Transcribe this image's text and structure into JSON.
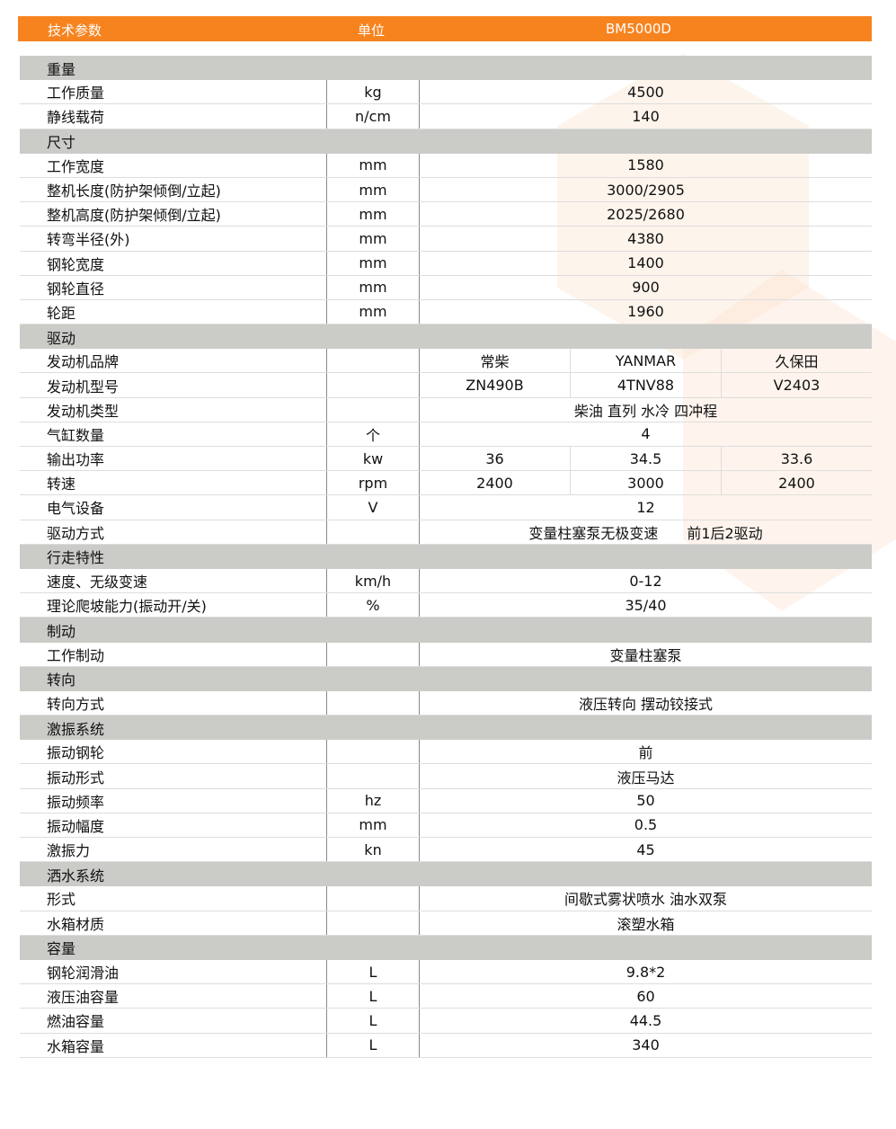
{
  "header": {
    "param": "技术参数",
    "unit": "单位",
    "model": "BM5000D"
  },
  "colors": {
    "header_bg": "#f7831f",
    "section_bg": "#cbcbc8"
  },
  "sections": [
    {
      "title": "重量",
      "rows": [
        {
          "label": "工作质量",
          "unit": "kg",
          "value": "4500"
        },
        {
          "label": "静线载荷",
          "unit": "n/cm",
          "value": "140"
        }
      ]
    },
    {
      "title": "尺寸",
      "rows": [
        {
          "label": "工作宽度",
          "unit": "mm",
          "value": "1580"
        },
        {
          "label": "整机长度(防护架倾倒/立起)",
          "unit": "mm",
          "value": "3000/2905"
        },
        {
          "label": "整机高度(防护架倾倒/立起)",
          "unit": "mm",
          "value": "2025/2680"
        },
        {
          "label": "转弯半径(外)",
          "unit": "mm",
          "value": "4380"
        },
        {
          "label": "钢轮宽度",
          "unit": "mm",
          "value": "1400"
        },
        {
          "label": "钢轮直径",
          "unit": "mm",
          "value": "900"
        },
        {
          "label": "轮距",
          "unit": "mm",
          "value": "1960"
        }
      ]
    },
    {
      "title": "驱动",
      "rows": [
        {
          "label": "发动机品牌",
          "unit": "",
          "values": [
            "常柴",
            "YANMAR",
            "久保田"
          ]
        },
        {
          "label": "发动机型号",
          "unit": "",
          "values": [
            "ZN490B",
            "4TNV88",
            "V2403"
          ]
        },
        {
          "label": "发动机类型",
          "unit": "",
          "value": "柴油 直列 水冷 四冲程"
        },
        {
          "label": "气缸数量",
          "unit": "个",
          "value": "4"
        },
        {
          "label": "输出功率",
          "unit": "kw",
          "values": [
            "36",
            "34.5",
            "33.6"
          ]
        },
        {
          "label": "转速",
          "unit": "rpm",
          "values": [
            "2400",
            "3000",
            "2400"
          ]
        },
        {
          "label": "电气设备",
          "unit": "V",
          "value": "12"
        },
        {
          "label": "驱动方式",
          "unit": "",
          "value": "变量柱塞泵无极变速　　前1后2驱动"
        }
      ]
    },
    {
      "title": "行走特性",
      "rows": [
        {
          "label": "速度、无级变速",
          "unit": "km/h",
          "value": "0-12"
        },
        {
          "label": "理论爬坡能力(振动开/关)",
          "unit": "%",
          "value": "35/40"
        }
      ]
    },
    {
      "title": "制动",
      "rows": [
        {
          "label": "工作制动",
          "unit": "",
          "value": "变量柱塞泵"
        }
      ]
    },
    {
      "title": "转向",
      "rows": [
        {
          "label": "转向方式",
          "unit": "",
          "value": "液压转向 摆动铰接式"
        }
      ]
    },
    {
      "title": "激振系统",
      "rows": [
        {
          "label": "振动钢轮",
          "unit": "",
          "value": "前"
        },
        {
          "label": "振动形式",
          "unit": "",
          "value": "液压马达"
        },
        {
          "label": "振动频率",
          "unit": "hz",
          "value": "50"
        },
        {
          "label": "振动幅度",
          "unit": "mm",
          "value": "0.5"
        },
        {
          "label": "激振力",
          "unit": "kn",
          "value": "45"
        }
      ]
    },
    {
      "title": "洒水系统",
      "rows": [
        {
          "label": "形式",
          "unit": "",
          "value": "间歇式雾状喷水 油水双泵"
        },
        {
          "label": "水箱材质",
          "unit": "",
          "value": "滚塑水箱"
        }
      ]
    },
    {
      "title": "容量",
      "rows": [
        {
          "label": "钢轮润滑油",
          "unit": "L",
          "value": "9.8*2"
        },
        {
          "label": "液压油容量",
          "unit": "L",
          "value": "60"
        },
        {
          "label": "燃油容量",
          "unit": "L",
          "value": "44.5"
        },
        {
          "label": "水箱容量",
          "unit": "L",
          "value": "340"
        }
      ]
    }
  ]
}
